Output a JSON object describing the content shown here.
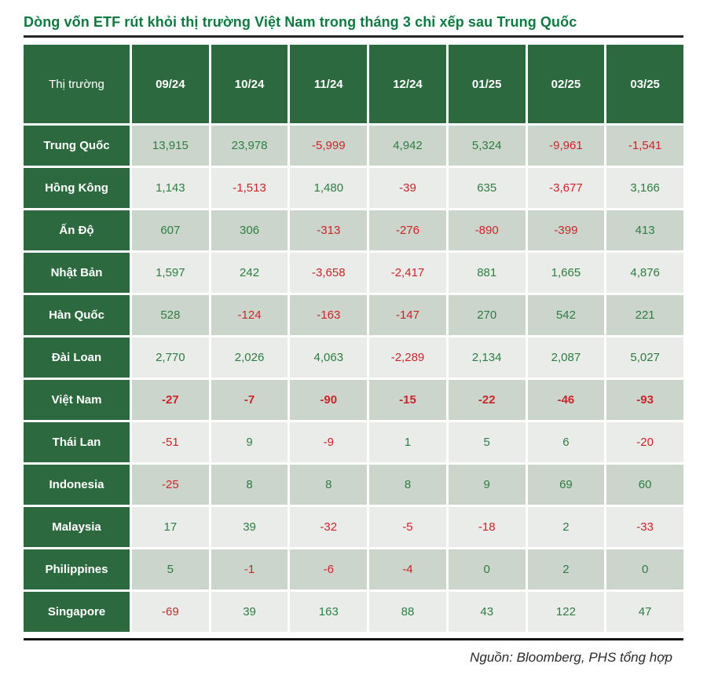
{
  "title": "Dòng vốn ETF rút khỏi thị trường Việt Nam trong tháng 3 chỉ xếp sau Trung Quốc",
  "source_note": "Nguồn: Bloomberg, PHS tổng hợp",
  "colors": {
    "title_green": "#0e7a42",
    "header_bg": "#2d693e",
    "row_bg_odd": "#ccd5cb",
    "row_bg_even": "#e9ece8",
    "positive": "#2e7d42",
    "negative": "#c9252b",
    "rule": "#262626"
  },
  "chart_data": {
    "type": "table",
    "title": "Dòng vốn ETF rút khỏi thị trường Việt Nam trong tháng 3 chỉ xếp sau Trung Quốc",
    "columns": [
      "Thị trường",
      "09/24",
      "10/24",
      "11/24",
      "12/24",
      "01/25",
      "02/25",
      "03/25"
    ],
    "rows": [
      {
        "label": "Trung Quốc",
        "values": [
          13915,
          23978,
          -5999,
          4942,
          5324,
          -9961,
          -1541
        ]
      },
      {
        "label": "Hồng Kông",
        "values": [
          1143,
          -1513,
          1480,
          -39,
          635,
          -3677,
          3166
        ]
      },
      {
        "label": "Ấn Độ",
        "values": [
          607,
          306,
          -313,
          -276,
          -890,
          -399,
          413
        ]
      },
      {
        "label": "Nhật Bản",
        "values": [
          1597,
          242,
          -3658,
          -2417,
          881,
          1665,
          4876
        ]
      },
      {
        "label": "Hàn Quốc",
        "values": [
          528,
          -124,
          -163,
          -147,
          270,
          542,
          221
        ]
      },
      {
        "label": "Đài Loan",
        "values": [
          2770,
          2026,
          4063,
          -2289,
          2134,
          2087,
          5027
        ]
      },
      {
        "label": "Việt Nam",
        "values": [
          -27,
          -7,
          -90,
          -15,
          -22,
          -46,
          -93
        ],
        "bold": true
      },
      {
        "label": "Thái Lan",
        "values": [
          -51,
          9,
          -9,
          1,
          5,
          6,
          -20
        ]
      },
      {
        "label": "Indonesia",
        "values": [
          -25,
          8,
          8,
          8,
          9,
          69,
          60
        ]
      },
      {
        "label": "Malaysia",
        "values": [
          17,
          39,
          -32,
          -5,
          -18,
          2,
          -33
        ]
      },
      {
        "label": "Philippines",
        "values": [
          5,
          -1,
          -6,
          -4,
          0,
          2,
          0
        ]
      },
      {
        "label": "Singapore",
        "values": [
          -69,
          39,
          163,
          88,
          43,
          122,
          47
        ]
      }
    ],
    "value_color_rule": "negative values red, zero and positive values green",
    "source": "Nguồn: Bloomberg, PHS tổng hợp"
  }
}
